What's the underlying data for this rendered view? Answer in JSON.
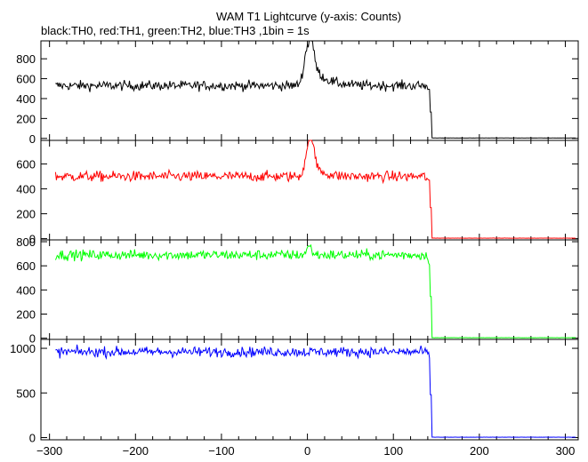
{
  "chart_data": {
    "type": "line",
    "title": "WAM T1 Lightcurve (y-axis: Counts)",
    "subtitle": "black:TH0, red:TH1, green:TH2, blue:TH3 ,1bin = 1s",
    "x_range": [
      -310,
      315
    ],
    "x_ticks": [
      -300,
      -200,
      -100,
      0,
      100,
      200,
      300
    ],
    "x_tick_labels": [
      "−300",
      "−200",
      "−100",
      "0",
      "100",
      "200",
      "300"
    ],
    "grid": false,
    "panels": [
      {
        "color": "#000000",
        "ylim": [
          -20,
          980
        ],
        "yticks": [
          0,
          200,
          400,
          600,
          800
        ],
        "baseline": 530,
        "noise": 35,
        "drop_x": 143,
        "spike": {
          "x": 1,
          "peak": 940,
          "width": 4.5,
          "tail": 300,
          "tail_tau": 14
        },
        "x_start": -293
      },
      {
        "color": "#ff0000",
        "ylim": [
          -10,
          790
        ],
        "yticks": [
          0,
          200,
          400,
          600
        ],
        "baseline": 500,
        "noise": 30,
        "drop_x": 143,
        "spike": {
          "x": 2,
          "peak": 780,
          "width": 4.0,
          "tail": 180,
          "tail_tau": 10
        },
        "x_start": -293
      },
      {
        "color": "#00ff00",
        "ylim": [
          -10,
          815
        ],
        "yticks": [
          0,
          200,
          400,
          600,
          800
        ],
        "baseline": 690,
        "noise": 30,
        "drop_x": 143,
        "spike": {
          "x": 2,
          "peak": 760,
          "width": 3.0,
          "tail": 0,
          "tail_tau": 5
        },
        "x_start": -293
      },
      {
        "color": "#0000ff",
        "ylim": [
          -25,
          1100
        ],
        "yticks": [
          0,
          500,
          1000
        ],
        "baseline": 960,
        "noise": 40,
        "drop_x": 143,
        "spike": {
          "x": 0,
          "peak": 960,
          "width": 1,
          "tail": 0,
          "tail_tau": 1
        },
        "x_start": -293
      }
    ]
  }
}
